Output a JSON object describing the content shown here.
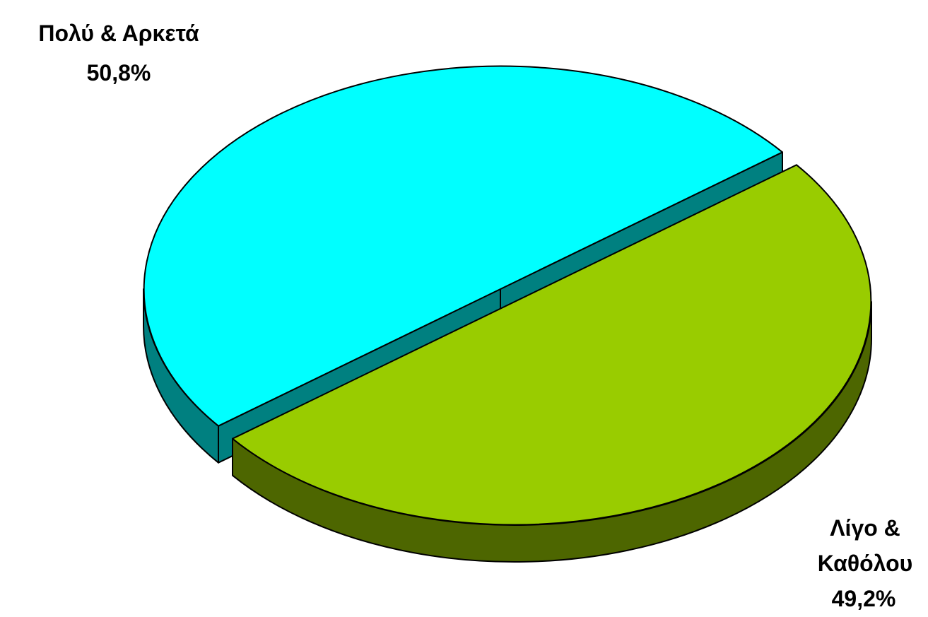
{
  "chart_data": {
    "type": "pie",
    "style": "3d-exploded",
    "slices": [
      {
        "label_lines": [
          "Πολύ & Αρκετά"
        ],
        "value": 50.8,
        "value_label": "50,8%",
        "top_color": "#00FFFF",
        "side_color": "#008080"
      },
      {
        "label_lines": [
          "Λίγο &",
          "Καθόλου"
        ],
        "value": 49.2,
        "value_label": "49,2%",
        "top_color": "#99CC00",
        "side_color": "#4D6600"
      }
    ]
  }
}
